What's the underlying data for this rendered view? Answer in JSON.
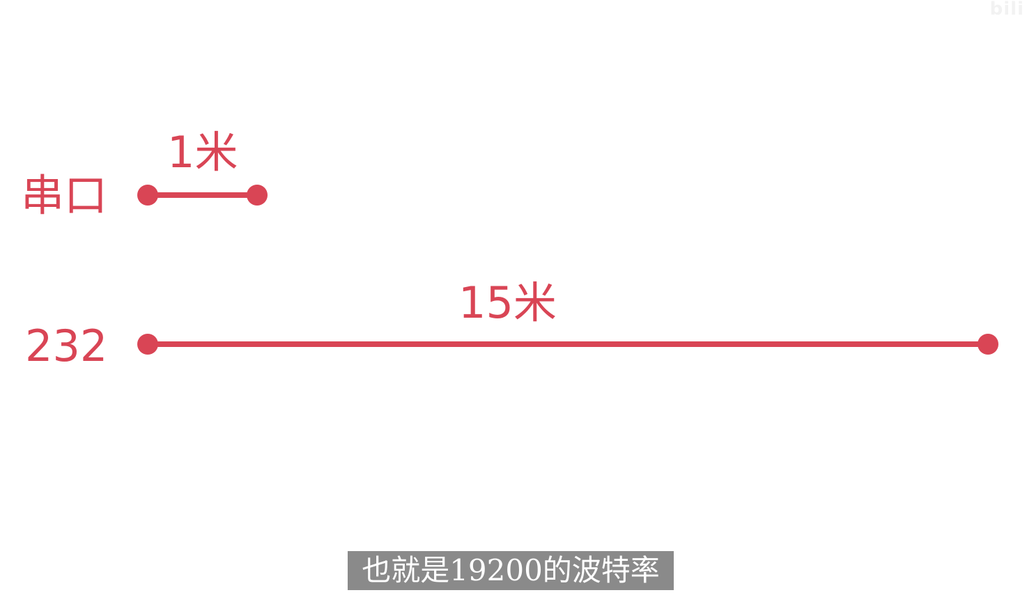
{
  "watermark": {
    "text": "bili"
  },
  "rows": [
    {
      "label": "串口",
      "distance": "1米"
    },
    {
      "label": "232",
      "distance": "15米"
    }
  ],
  "subtitle": {
    "text": "也就是19200的波特率"
  },
  "colors": {
    "accent": "#d94555",
    "subtitle_bg": "#8a8a8a",
    "background": "#ffffff"
  }
}
